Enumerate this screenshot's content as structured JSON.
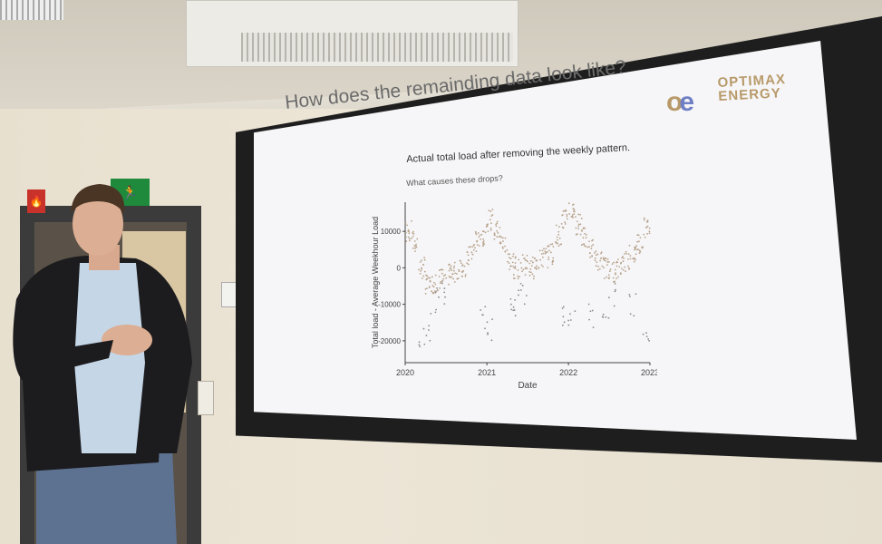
{
  "slide": {
    "title": "How does the remainding data look like?",
    "logo_mark": "oe",
    "logo_line1": "OPTIMAX",
    "logo_line2": "ENERGY"
  },
  "signs": {
    "exit": "🏃",
    "fire": "🔥"
  },
  "chart_data": {
    "type": "scatter",
    "title": "Actual total load after removing the weekly pattern.",
    "subtitle": "What causes these drops?",
    "xlabel": "Date",
    "ylabel": "Total load - Average Weekhour Load",
    "x_ticks": [
      "2020",
      "2021",
      "2022",
      "2023"
    ],
    "y_ticks": [
      "10000",
      "0",
      "-10000",
      "-20000"
    ],
    "xlim": [
      "2020-01-01",
      "2023-01-01"
    ],
    "ylim": [
      -26000,
      18000
    ],
    "grid": false,
    "point_color": "#b8a38c",
    "baseline_by_month": [
      [
        "2020-01",
        10000
      ],
      [
        "2020-02",
        7000
      ],
      [
        "2020-03",
        0
      ],
      [
        "2020-04",
        -5000
      ],
      [
        "2020-05",
        -4000
      ],
      [
        "2020-06",
        -3000
      ],
      [
        "2020-07",
        -2000
      ],
      [
        "2020-08",
        -1000
      ],
      [
        "2020-09",
        500
      ],
      [
        "2020-10",
        3000
      ],
      [
        "2020-11",
        7000
      ],
      [
        "2020-12",
        9000
      ],
      [
        "2021-01",
        13000
      ],
      [
        "2021-02",
        10000
      ],
      [
        "2021-03",
        7000
      ],
      [
        "2021-04",
        2000
      ],
      [
        "2021-05",
        0
      ],
      [
        "2021-06",
        1000
      ],
      [
        "2021-07",
        0
      ],
      [
        "2021-08",
        2000
      ],
      [
        "2021-09",
        3000
      ],
      [
        "2021-10",
        4000
      ],
      [
        "2021-11",
        9000
      ],
      [
        "2021-12",
        13000
      ],
      [
        "2022-01",
        16000
      ],
      [
        "2022-02",
        12000
      ],
      [
        "2022-03",
        8000
      ],
      [
        "2022-04",
        5000
      ],
      [
        "2022-05",
        2000
      ],
      [
        "2022-06",
        0
      ],
      [
        "2022-07",
        -1000
      ],
      [
        "2022-08",
        0
      ],
      [
        "2022-09",
        2000
      ],
      [
        "2022-10",
        4000
      ],
      [
        "2022-11",
        7000
      ],
      [
        "2022-12",
        11000
      ]
    ],
    "drops": [
      [
        "2020-03",
        -22000
      ],
      [
        "2020-04",
        -20000
      ],
      [
        "2020-05",
        -13000
      ],
      [
        "2020-06",
        -10000
      ],
      [
        "2020-12",
        -18000
      ],
      [
        "2021-01",
        -20000
      ],
      [
        "2021-04",
        -16000
      ],
      [
        "2021-05",
        -14000
      ],
      [
        "2021-06",
        -11000
      ],
      [
        "2021-12",
        -18000
      ],
      [
        "2022-01",
        -16000
      ],
      [
        "2022-04",
        -17000
      ],
      [
        "2022-06",
        -15000
      ],
      [
        "2022-07",
        -12000
      ],
      [
        "2022-10",
        -14000
      ],
      [
        "2022-12",
        -20000
      ]
    ]
  }
}
